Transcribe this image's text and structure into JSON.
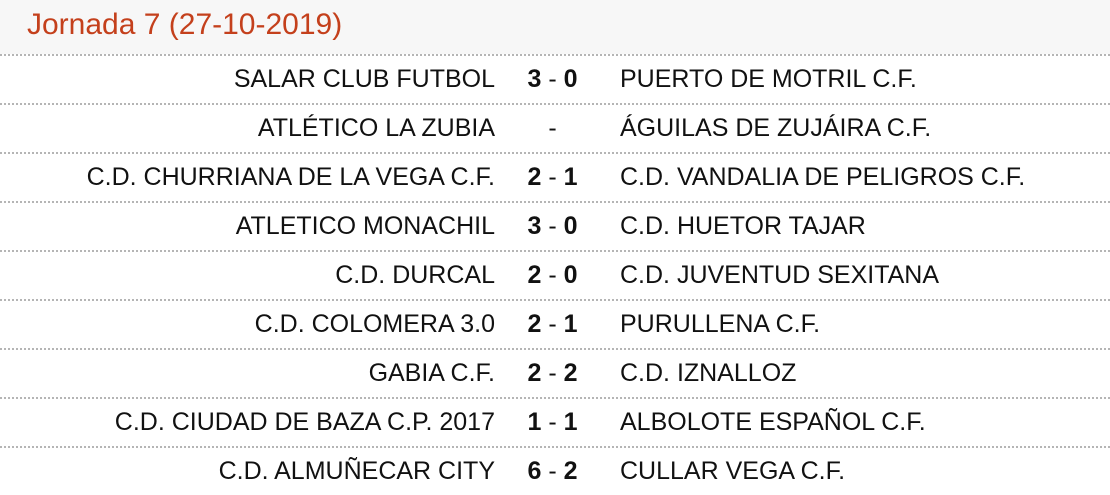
{
  "title": "Jornada 7 (27-10-2019)",
  "matches": [
    {
      "home": "SALAR CLUB FUTBOL",
      "home_goals": "3",
      "sep": "-",
      "away_goals": "0",
      "away": "PUERTO DE MOTRIL C.F."
    },
    {
      "home": "ATLÉTICO LA ZUBIA",
      "home_goals": "",
      "sep": "-",
      "away_goals": "",
      "away": "ÁGUILAS DE ZUJÁIRA C.F."
    },
    {
      "home": "C.D. CHURRIANA DE LA VEGA C.F.",
      "home_goals": "2",
      "sep": "-",
      "away_goals": "1",
      "away": "C.D. VANDALIA DE PELIGROS C.F."
    },
    {
      "home": "ATLETICO MONACHIL",
      "home_goals": "3",
      "sep": "-",
      "away_goals": "0",
      "away": "C.D. HUETOR TAJAR"
    },
    {
      "home": "C.D. DURCAL",
      "home_goals": "2",
      "sep": "-",
      "away_goals": "0",
      "away": "C.D. JUVENTUD SEXITANA"
    },
    {
      "home": "C.D. COLOMERA 3.0",
      "home_goals": "2",
      "sep": "-",
      "away_goals": "1",
      "away": "PURULLENA C.F."
    },
    {
      "home": "GABIA C.F.",
      "home_goals": "2",
      "sep": "-",
      "away_goals": "2",
      "away": "C.D. IZNALLOZ"
    },
    {
      "home": "C.D. CIUDAD DE BAZA C.P. 2017",
      "home_goals": "1",
      "sep": "-",
      "away_goals": "1",
      "away": "ALBOLOTE ESPAÑOL C.F."
    },
    {
      "home": "C.D. ALMUÑECAR CITY",
      "home_goals": "6",
      "sep": "-",
      "away_goals": "2",
      "away": "CULLAR VEGA C.F."
    }
  ],
  "colors": {
    "title": "#c4401c",
    "header_bg": "#f7f7f7",
    "divider": "#b5b5b5"
  }
}
